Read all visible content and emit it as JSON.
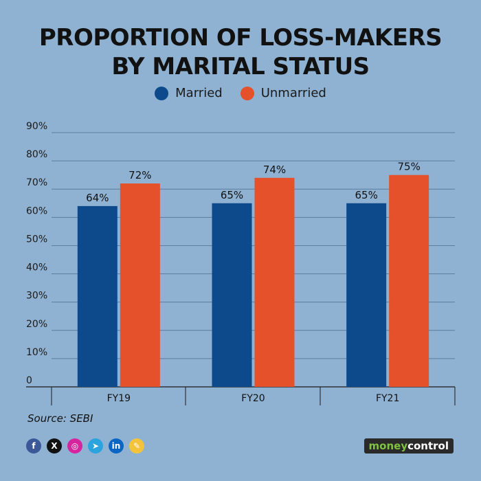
{
  "title_line1": "PROPORTION OF LOSS-MAKERS",
  "title_line2": "BY MARITAL STATUS",
  "source": "Source: SEBI",
  "colors": {
    "married": "#0d4a8c",
    "unmarried": "#e4512b",
    "background": "#8fb2d2",
    "grid": "#5c7d9c"
  },
  "socials": [
    {
      "icon": "facebook-icon",
      "glyph": "f",
      "color": "#3b5998"
    },
    {
      "icon": "x-icon",
      "glyph": "X",
      "color": "#111111"
    },
    {
      "icon": "instagram-icon",
      "glyph": "◎",
      "color": "#d6249f"
    },
    {
      "icon": "telegram-icon",
      "glyph": "➤",
      "color": "#2aa3de"
    },
    {
      "icon": "linkedin-icon",
      "glyph": "in",
      "color": "#0a66c2"
    },
    {
      "icon": "koo-icon",
      "glyph": "✎",
      "color": "#f3c33c"
    }
  ],
  "brand": {
    "part1": "money",
    "part2": "control"
  },
  "chart_data": {
    "type": "bar",
    "categories": [
      "FY19",
      "FY20",
      "FY21"
    ],
    "series": [
      {
        "name": "Married",
        "values": [
          64,
          65,
          65
        ],
        "labels": [
          "64%",
          "65%",
          "65%"
        ]
      },
      {
        "name": "Unmarried",
        "values": [
          72,
          74,
          75
        ],
        "labels": [
          "72%",
          "74%",
          "75%"
        ]
      }
    ],
    "y_ticks": [
      "0",
      "10%",
      "20%",
      "30%",
      "40%",
      "50%",
      "60%",
      "70%",
      "80%",
      "90%"
    ],
    "ylim": [
      0,
      90
    ],
    "grid": true,
    "legend": "top-center"
  }
}
